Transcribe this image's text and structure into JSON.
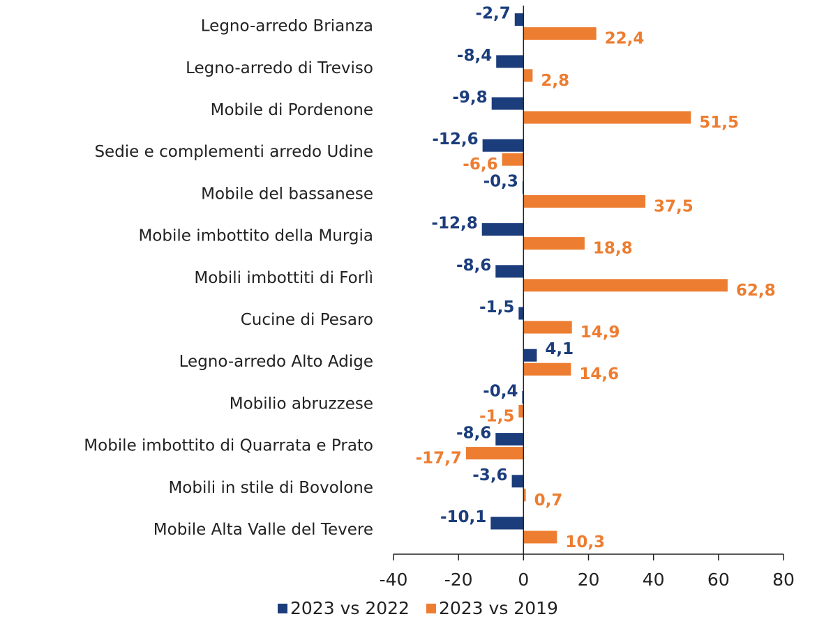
{
  "chart_data": {
    "type": "hbar",
    "categories": [
      "Legno-arredo Brianza",
      "Legno-arredo di Treviso",
      "Mobile di Pordenone",
      "Sedie e complementi arredo Udine",
      "Mobile del bassanese",
      "Mobile imbottito della Murgia",
      "Mobili imbottiti di Forlì",
      "Cucine di Pesaro",
      "Legno-arredo Alto Adige",
      "Mobilio abruzzese",
      "Mobile imbottito di Quarrata e Prato",
      "Mobili in stile di Bovolone",
      "Mobile Alta Valle del Tevere"
    ],
    "series": [
      {
        "name": "2023 vs 2022",
        "color": "#1b3d7c",
        "values": [
          -2.7,
          -8.4,
          -9.8,
          -12.6,
          -0.3,
          -12.8,
          -8.6,
          -1.5,
          4.1,
          -0.4,
          -8.6,
          -3.6,
          -10.1
        ],
        "value_labels": [
          "-2,7",
          "-8,4",
          "-9,8",
          "-12,6",
          "-0,3",
          "-12,8",
          "-8,6",
          "-1,5",
          "4,1",
          "-0,4",
          "-8,6",
          "-3,6",
          "-10,1"
        ]
      },
      {
        "name": "2023 vs 2019",
        "color": "#ed7d31",
        "values": [
          22.4,
          2.8,
          51.5,
          -6.6,
          37.5,
          18.8,
          62.8,
          14.9,
          14.6,
          -1.5,
          -17.7,
          0.7,
          10.3
        ],
        "value_labels": [
          "22,4",
          "2,8",
          "51,5",
          "-6,6",
          "37,5",
          "18,8",
          "62,8",
          "14,9",
          "14,6",
          "-1,5",
          "-17,7",
          "0,7",
          "10,3"
        ]
      }
    ],
    "xlim": [
      -40,
      80
    ],
    "xticks": [
      -40,
      -20,
      0,
      20,
      40,
      60,
      80
    ],
    "legend": "bottom"
  }
}
